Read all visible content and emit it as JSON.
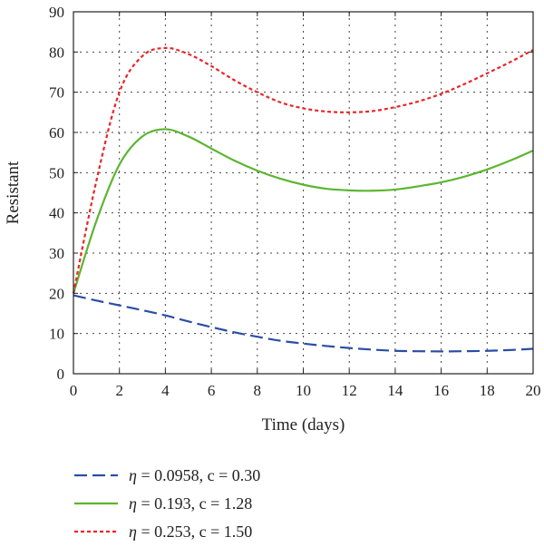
{
  "chart_data": {
    "type": "line",
    "xlabel": "Time (days)",
    "ylabel": "Resistant",
    "xlim": [
      0,
      20
    ],
    "ylim": [
      0,
      90
    ],
    "xticks": [
      0,
      2,
      4,
      6,
      8,
      10,
      12,
      14,
      16,
      18,
      20
    ],
    "yticks": [
      0,
      10,
      20,
      30,
      40,
      50,
      60,
      70,
      80,
      90
    ],
    "grid": true,
    "legend_position": "below-left",
    "x": [
      0,
      1,
      2,
      3,
      4,
      5,
      6,
      7,
      8,
      9,
      10,
      11,
      12,
      13,
      14,
      15,
      16,
      17,
      18,
      19,
      20
    ],
    "series": [
      {
        "name_prefix": "η",
        "name_suffix": " = 0.0958, c = 0.30",
        "color": "#2b4ea5",
        "style": "dashed",
        "values": [
          19.5,
          18.2,
          17.0,
          15.8,
          14.5,
          13.0,
          11.6,
          10.3,
          9.2,
          8.2,
          7.5,
          6.9,
          6.4,
          6.0,
          5.7,
          5.6,
          5.55,
          5.6,
          5.7,
          5.9,
          6.2
        ]
      },
      {
        "name_prefix": "η",
        "name_suffix": " = 0.193, c = 1.28",
        "color": "#5cb531",
        "style": "solid",
        "values": [
          20.0,
          38.0,
          52.0,
          59.0,
          60.8,
          59.0,
          56.0,
          53.0,
          50.5,
          48.5,
          47.0,
          46.0,
          45.6,
          45.5,
          45.8,
          46.6,
          47.6,
          49.0,
          50.8,
          53.0,
          55.5
        ]
      },
      {
        "name_prefix": "η",
        "name_suffix": " = 0.253, c = 1.50",
        "color": "#e8262a",
        "style": "dotted",
        "values": [
          20.0,
          48.0,
          70.0,
          79.0,
          81.0,
          79.5,
          76.5,
          73.0,
          70.0,
          67.5,
          66.0,
          65.2,
          65.0,
          65.3,
          66.3,
          67.7,
          69.6,
          72.0,
          74.7,
          77.5,
          80.5
        ]
      }
    ]
  }
}
